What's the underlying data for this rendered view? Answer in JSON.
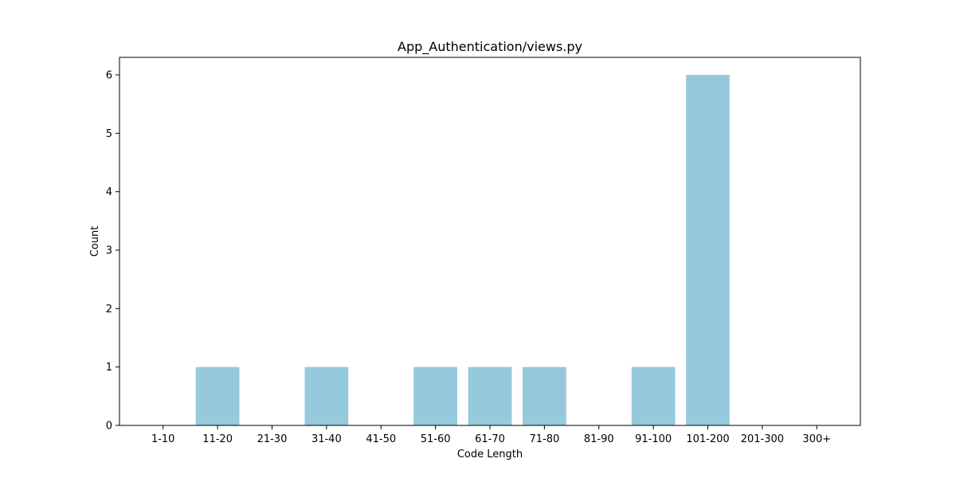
{
  "chart_data": {
    "type": "bar",
    "title": "App_Authentication/views.py",
    "xlabel": "Code Length",
    "ylabel": "Count",
    "categories": [
      "1-10",
      "11-20",
      "21-30",
      "31-40",
      "41-50",
      "51-60",
      "61-70",
      "71-80",
      "81-90",
      "91-100",
      "101-200",
      "201-300",
      "300+"
    ],
    "values": [
      0,
      1,
      0,
      1,
      0,
      1,
      1,
      1,
      0,
      1,
      6,
      0,
      0
    ],
    "ylim": [
      0,
      6.3
    ],
    "yticks": [
      0,
      1,
      2,
      3,
      4,
      5,
      6
    ],
    "grid": false,
    "bar_color": "#96c9dc"
  }
}
